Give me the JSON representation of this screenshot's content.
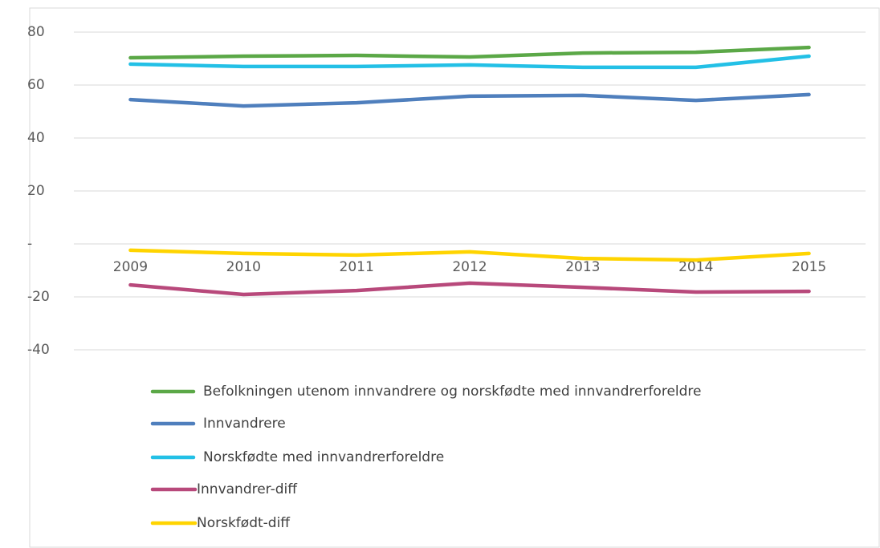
{
  "chart_data": {
    "type": "line",
    "categories": [
      "2009",
      "2010",
      "2011",
      "2012",
      "2013",
      "2014",
      "2015"
    ],
    "series": [
      {
        "name": "Befolkningen utenom innvandrere og norskfødte med innvandrerforeldre",
        "color": "#5ba847",
        "values": [
          70.3,
          70.9,
          71.2,
          70.6,
          72.1,
          72.4,
          74.2
        ]
      },
      {
        "name": "Innvandrere",
        "color": "#4f7fbd",
        "values": [
          54.5,
          52.1,
          53.3,
          55.8,
          56.1,
          54.2,
          56.4
        ]
      },
      {
        "name": "Norskfødte med innvandrerforeldre",
        "color": "#23c0e6",
        "values": [
          67.9,
          67.0,
          67.0,
          67.6,
          66.7,
          66.7,
          70.9
        ]
      },
      {
        "name": "Innvandrer-diff",
        "color": "#b8497b",
        "values": [
          -15.5,
          -19.1,
          -17.6,
          -14.8,
          -16.4,
          -18.2,
          -17.9
        ]
      },
      {
        "name": "Norskfødt-diff",
        "color": "#ffd400",
        "values": [
          -2.4,
          -3.6,
          -4.2,
          -3.0,
          -5.5,
          -6.1,
          -3.6
        ]
      }
    ],
    "ylim": [
      -40,
      80
    ],
    "yticks": [
      -40,
      -20,
      {
        "value": 0,
        "label": "-"
      },
      20,
      40,
      60,
      80
    ],
    "grid": true
  }
}
